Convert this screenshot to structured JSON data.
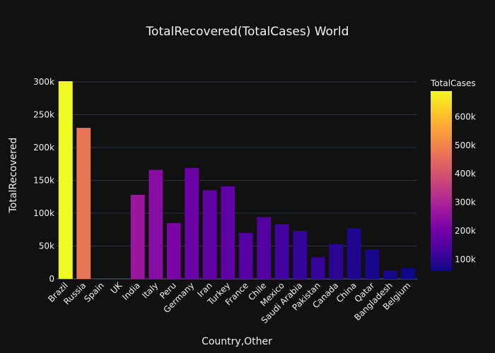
{
  "chart_data": {
    "type": "bar",
    "title": "TotalRecovered(TotalCases) World",
    "xlabel": "Country,Other",
    "ylabel": "TotalRecovered",
    "ylim": [
      0,
      315000
    ],
    "yticks": [
      0,
      50000,
      100000,
      150000,
      200000,
      250000,
      300000
    ],
    "ytick_labels": [
      "0",
      "50k",
      "100k",
      "150k",
      "200k",
      "250k",
      "300k"
    ],
    "grid": true,
    "categories": [
      "Brazil",
      "Russia",
      "Spain",
      "UK",
      "India",
      "Italy",
      "Peru",
      "Germany",
      "Iran",
      "Turkey",
      "France",
      "Chile",
      "Mexico",
      "Saudi Arabia",
      "Pakistan",
      "Canada",
      "China",
      "Qatar",
      "Bangladesh",
      "Belgium"
    ],
    "values": [
      301000,
      230000,
      null,
      null,
      128000,
      166000,
      85000,
      169000,
      135000,
      141000,
      70000,
      94000,
      83000,
      73000,
      33000,
      53000,
      77000,
      45000,
      13000,
      16000
    ],
    "color_values": [
      690000,
      470000,
      288000,
      290000,
      265000,
      236000,
      215000,
      186000,
      175000,
      170000,
      155000,
      150000,
      125000,
      110000,
      110000,
      97000,
      84000,
      70000,
      68000,
      59000
    ],
    "colorscale": [
      "#0d0887",
      "#46039f",
      "#7201a8",
      "#9c179e",
      "#bd3786",
      "#d8576b",
      "#ed7953",
      "#fb9f3a",
      "#fdca26",
      "#f0f921"
    ],
    "colorbar": {
      "title": "TotalCases",
      "range": [
        59000,
        690000
      ],
      "ticks": [
        100000,
        200000,
        300000,
        400000,
        500000,
        600000
      ],
      "tick_labels": [
        "100k",
        "200k",
        "300k",
        "400k",
        "500k",
        "600k"
      ]
    }
  }
}
